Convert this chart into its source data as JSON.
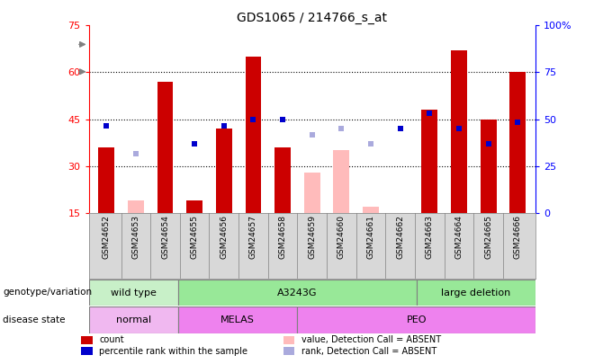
{
  "title": "GDS1065 / 214766_s_at",
  "samples": [
    "GSM24652",
    "GSM24653",
    "GSM24654",
    "GSM24655",
    "GSM24656",
    "GSM24657",
    "GSM24658",
    "GSM24659",
    "GSM24660",
    "GSM24661",
    "GSM24662",
    "GSM24663",
    "GSM24664",
    "GSM24665",
    "GSM24666"
  ],
  "count": [
    36,
    null,
    57,
    19,
    42,
    65,
    36,
    null,
    null,
    null,
    null,
    48,
    67,
    45,
    60
  ],
  "count_absent": [
    null,
    19,
    null,
    null,
    null,
    null,
    null,
    28,
    35,
    17,
    null,
    null,
    null,
    null,
    null
  ],
  "rank": [
    43,
    null,
    null,
    37,
    43,
    45,
    45,
    null,
    42,
    null,
    42,
    47,
    42,
    37,
    44
  ],
  "rank_absent": [
    null,
    34,
    null,
    null,
    null,
    null,
    null,
    40,
    42,
    37,
    null,
    null,
    null,
    null,
    null
  ],
  "genotype_groups": [
    {
      "label": "wild type",
      "start": 0,
      "end": 3,
      "color": "#c8f0c8"
    },
    {
      "label": "A3243G",
      "start": 3,
      "end": 11,
      "color": "#98e898"
    },
    {
      "label": "large deletion",
      "start": 11,
      "end": 15,
      "color": "#98e898"
    }
  ],
  "disease_groups": [
    {
      "label": "normal",
      "start": 0,
      "end": 3,
      "color": "#f0b8f0"
    },
    {
      "label": "MELAS",
      "start": 3,
      "end": 7,
      "color": "#ee82ee"
    },
    {
      "label": "PEO",
      "start": 7,
      "end": 15,
      "color": "#ee82ee"
    }
  ],
  "ylim_left": [
    15,
    75
  ],
  "ylim_right": [
    0,
    100
  ],
  "yticks_left": [
    15,
    30,
    45,
    60,
    75
  ],
  "yticks_right": [
    0,
    25,
    50,
    75,
    100
  ],
  "bar_color": "#cc0000",
  "bar_absent_color": "#ffbbbb",
  "rank_color": "#0000cc",
  "rank_absent_color": "#aaaadd",
  "bar_width": 0.55,
  "rank_marker_size": 5,
  "label_fontsize": 8,
  "tick_fontsize": 8,
  "title_fontsize": 10
}
